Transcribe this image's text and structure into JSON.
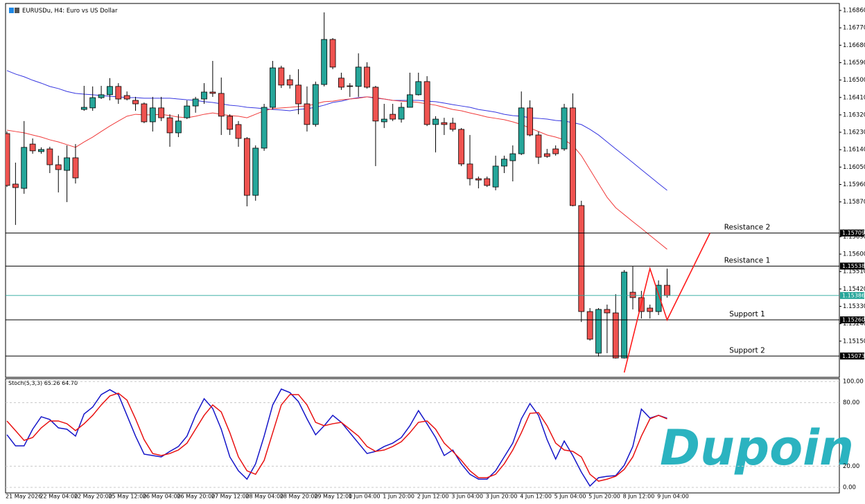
{
  "logo": "Dupoin",
  "chart_data": {
    "type": "candlestick",
    "title": "EURUSDu, H4:  Euro vs US Dollar",
    "categories": [
      "21 May 2026",
      null,
      null,
      null,
      "22 May 04:00",
      null,
      null,
      null,
      "22 May 20:00",
      null,
      null,
      null,
      "25 May 12:00",
      null,
      null,
      null,
      "26 May 04:00",
      null,
      null,
      null,
      "26 May 20:00",
      null,
      null,
      null,
      "27 May 12:00",
      null,
      null,
      null,
      "28 May 04:00",
      null,
      null,
      null,
      "28 May 20:00",
      null,
      null,
      null,
      "29 May 12:00",
      null,
      null,
      null,
      "1 Jun 04:00",
      null,
      null,
      null,
      "1 Jun 20:00",
      null,
      null,
      null,
      "2 Jun 12:00",
      null,
      null,
      null,
      "3 Jun 04:00",
      null,
      null,
      null,
      "3 Jun 20:00",
      null,
      null,
      null,
      "4 Jun 12:00",
      null,
      null,
      null,
      "5 Jun 04:00",
      null,
      null,
      null,
      "5 Jun 20:00",
      null,
      null,
      null,
      "8 Jun 12:00",
      null,
      null,
      null,
      "9 Jun 04:00",
      null
    ],
    "open": [
      1.16223,
      1.15962,
      1.1594,
      1.16169,
      1.1613,
      1.16144,
      1.16062,
      1.16033,
      1.16098,
      1.16348,
      1.16356,
      1.16409,
      1.16424,
      1.16467,
      1.1642,
      1.16395,
      1.16377,
      1.16284,
      1.16356,
      1.16305,
      1.16227,
      1.16305,
      1.16366,
      1.16402,
      1.16438,
      1.16431,
      1.16313,
      1.1627,
      1.16198,
      1.15904,
      1.16148,
      1.16359,
      1.16563,
      1.16502,
      1.16474,
      1.16377,
      1.1627,
      1.16477,
      1.1671,
      1.1651,
      1.1647,
      1.16467,
      1.16567,
      1.16463,
      1.16284,
      1.16323,
      1.16298,
      1.16359,
      1.16424,
      1.16492,
      1.1627,
      1.1628,
      1.16277,
      1.16245,
      1.16066,
      1.1599,
      1.1599,
      1.15947,
      1.16055,
      1.16083,
      1.16119,
      1.16356,
      1.16216,
      1.16119,
      1.16144,
      1.16144,
      1.16356,
      1.15851,
      1.15303,
      1.15088,
      1.15314,
      1.15296,
      1.15063,
      1.15403,
      1.15375,
      1.15321,
      1.15303,
      1.15439
    ],
    "high": [
      1.16234,
      1.16073,
      1.16288,
      1.16198,
      1.16152,
      1.16155,
      1.16109,
      1.16162,
      1.16169,
      1.1647,
      1.16467,
      1.1647,
      1.1651,
      1.16484,
      1.16441,
      1.16413,
      1.16384,
      1.16413,
      1.16413,
      1.16323,
      1.16323,
      1.16395,
      1.16413,
      1.16484,
      1.16599,
      1.16513,
      1.16323,
      1.16288,
      1.16205,
      1.16162,
      1.16377,
      1.16599,
      1.16574,
      1.16527,
      1.16556,
      1.16467,
      1.16492,
      1.1685,
      1.16717,
      1.16538,
      1.16484,
      1.16638,
      1.16592,
      1.1647,
      1.16377,
      1.16377,
      1.16384,
      1.16538,
      1.16538,
      1.1652,
      1.16313,
      1.16305,
      1.16305,
      1.16252,
      1.16216,
      1.16001,
      1.16001,
      1.16109,
      1.16109,
      1.16162,
      1.16441,
      1.16395,
      1.16234,
      1.16144,
      1.16162,
      1.16377,
      1.16431,
      1.15876,
      1.15321,
      1.15321,
      1.15339,
      1.15393,
      1.15518,
      1.15536,
      1.1541,
      1.15339,
      1.15464,
      1.15525
    ],
    "low": [
      1.15947,
      1.15751,
      1.15912,
      1.16119,
      1.16119,
      1.16019,
      1.15919,
      1.15869,
      1.15965,
      1.16341,
      1.16341,
      1.16402,
      1.16395,
      1.16377,
      1.16395,
      1.16341,
      1.16277,
      1.16234,
      1.16288,
      1.16155,
      1.16205,
      1.16298,
      1.16331,
      1.16377,
      1.16413,
      1.16216,
      1.16216,
      1.16155,
      1.15847,
      1.15876,
      1.16134,
      1.16348,
      1.16459,
      1.16456,
      1.16323,
      1.16234,
      1.16259,
      1.16467,
      1.16556,
      1.16449,
      1.16413,
      1.16413,
      1.16456,
      1.16055,
      1.16252,
      1.16288,
      1.1628,
      1.16359,
      1.1642,
      1.16262,
      1.16126,
      1.16216,
      1.16234,
      1.16055,
      1.15955,
      1.1594,
      1.15947,
      1.1593,
      1.16019,
      1.15976,
      1.16112,
      1.16209,
      1.16066,
      1.16098,
      1.16109,
      1.16134,
      1.15847,
      1.15249,
      1.15153,
      1.1507,
      1.15088,
      1.1506,
      1.1506,
      1.15314,
      1.15267,
      1.15267,
      1.15285,
      1.15375
    ],
    "close": [
      1.15955,
      1.15944,
      1.16152,
      1.16134,
      1.16141,
      1.16062,
      1.16037,
      1.16098,
      1.15994,
      1.16359,
      1.16409,
      1.16424,
      1.16467,
      1.16402,
      1.16402,
      1.16377,
      1.16284,
      1.16356,
      1.16305,
      1.16227,
      1.16288,
      1.16366,
      1.16402,
      1.16438,
      1.16431,
      1.16313,
      1.16245,
      1.16198,
      1.15904,
      1.16148,
      1.16359,
      1.16563,
      1.16474,
      1.16474,
      1.16377,
      1.1627,
      1.16477,
      1.1671,
      1.16567,
      1.16463,
      1.16467,
      1.16567,
      1.16463,
      1.16288,
      1.16298,
      1.16298,
      1.16359,
      1.16424,
      1.16492,
      1.1627,
      1.16298,
      1.1627,
      1.16245,
      1.16066,
      1.1599,
      1.15983,
      1.15955,
      1.16055,
      1.16091,
      1.16119,
      1.16356,
      1.16216,
      1.16101,
      1.16105,
      1.16119,
      1.16356,
      1.15851,
      1.15303,
      1.1516,
      1.15314,
      1.15296,
      1.15063,
      1.15507,
      1.15375,
      1.15303,
      1.15303,
      1.15439,
      1.15386
    ],
    "up_color": "#26a69a",
    "down_color": "#ef5350",
    "overlays": [
      {
        "color": "#3535e0",
        "values": [
          1.16549,
          1.16531,
          1.16517,
          1.16499,
          1.16484,
          1.16467,
          1.16456,
          1.16441,
          1.16431,
          1.16427,
          1.16424,
          1.1642,
          1.16416,
          1.16413,
          1.16409,
          1.16409,
          1.16406,
          1.16406,
          1.16406,
          1.16406,
          1.16402,
          1.16398,
          1.16395,
          1.16388,
          1.16384,
          1.16377,
          1.1637,
          1.16366,
          1.16359,
          1.16356,
          1.16352,
          1.16348,
          1.16345,
          1.16341,
          1.16348,
          1.16352,
          1.16359,
          1.1637,
          1.16384,
          1.16391,
          1.16402,
          1.16409,
          1.16413,
          1.16406,
          1.16402,
          1.16395,
          1.16395,
          1.16395,
          1.16395,
          1.16391,
          1.16388,
          1.16381,
          1.16373,
          1.16366,
          1.16359,
          1.16348,
          1.16341,
          1.16334,
          1.16323,
          1.16316,
          1.16313,
          1.16305,
          1.16302,
          1.16298,
          1.16291,
          1.16288,
          1.1628,
          1.1627,
          1.16245,
          1.16216,
          1.1618,
          1.16144,
          1.16109,
          1.16073,
          1.16037,
          1.16001,
          1.15965,
          1.1593
        ]
      },
      {
        "color": "#f03a3a",
        "values": [
          1.16241,
          1.16234,
          1.16227,
          1.16216,
          1.16205,
          1.16191,
          1.1618,
          1.16166,
          1.16152,
          1.1618,
          1.16205,
          1.16234,
          1.16262,
          1.16288,
          1.16313,
          1.16323,
          1.1632,
          1.1632,
          1.16323,
          1.16316,
          1.16309,
          1.16305,
          1.16313,
          1.16323,
          1.1633,
          1.16323,
          1.16316,
          1.16313,
          1.16305,
          1.16323,
          1.16341,
          1.16352,
          1.16356,
          1.16359,
          1.16363,
          1.16366,
          1.16377,
          1.16388,
          1.16391,
          1.16398,
          1.16402,
          1.16406,
          1.16413,
          1.16409,
          1.16402,
          1.16395,
          1.16391,
          1.16388,
          1.16384,
          1.16377,
          1.1637,
          1.16359,
          1.16348,
          1.16341,
          1.1633,
          1.1632,
          1.16309,
          1.16302,
          1.16295,
          1.16284,
          1.1627,
          1.16252,
          1.16234,
          1.16216,
          1.16205,
          1.16191,
          1.16162,
          1.16109,
          1.16037,
          1.15965,
          1.15894,
          1.1584,
          1.15804,
          1.15768,
          1.15733,
          1.15697,
          1.15661,
          1.15625
        ]
      }
    ],
    "ylim": [
      1.14963,
      1.16896
    ],
    "yticks": [
      {
        "value": 1.1686,
        "label": "1.16860"
      },
      {
        "value": 1.1677,
        "label": "1.16770"
      },
      {
        "value": 1.1668,
        "label": "1.16680"
      },
      {
        "value": 1.1659,
        "label": "1.16590"
      },
      {
        "value": 1.165,
        "label": "1.16500"
      },
      {
        "value": 1.1641,
        "label": "1.16410"
      },
      {
        "value": 1.1632,
        "label": "1.16320"
      },
      {
        "value": 1.1623,
        "label": "1.16230"
      },
      {
        "value": 1.1614,
        "label": "1.16140"
      },
      {
        "value": 1.1605,
        "label": "1.16050"
      },
      {
        "value": 1.1596,
        "label": "1.15960"
      },
      {
        "value": 1.1587,
        "label": "1.15870"
      },
      {
        "value": 1.1569,
        "label": "1.15690"
      },
      {
        "value": 1.156,
        "label": "1.15600"
      },
      {
        "value": 1.1551,
        "label": "1.15510"
      },
      {
        "value": 1.1542,
        "label": "1.15420"
      },
      {
        "value": 1.1533,
        "label": "1.15330"
      },
      {
        "value": 1.1524,
        "label": "1.15240"
      },
      {
        "value": 1.1515,
        "label": "1.15150"
      }
    ],
    "levels": [
      {
        "name": "Resistance 2",
        "price": 1.15709
      },
      {
        "name": "Resistance 1",
        "price": 1.15538
      },
      {
        "name": "Support 1",
        "price": {
          "value": 1.1526,
          "label": "1.15260"
        }
      },
      {
        "name": "Support 2",
        "price": 1.15073
      }
    ],
    "current_price": 1.15386,
    "current_color": "#26a69a",
    "drawing": {
      "color": "#ff1a1a",
      "x": [
        72,
        75,
        77,
        82
      ],
      "y": [
        1.14988,
        1.15525,
        1.1526,
        1.15709
      ]
    },
    "indicator": {
      "title": "Stoch(5,3,3) 65.26 64.70",
      "ylim": [
        -5.2,
        102.6
      ],
      "yticks": [
        {
          "value": 100,
          "label": "100.00"
        },
        {
          "value": 80,
          "label": "80.00"
        },
        {
          "value": 20,
          "label": "20.00"
        },
        {
          "value": 0,
          "label": "0.00"
        }
      ],
      "series": [
        {
          "color": "#1414c8",
          "values": [
            49.7,
            39.2,
            39.2,
            54.9,
            66.7,
            64.1,
            56.2,
            54.9,
            48.4,
            69.3,
            75.8,
            87.6,
            92.2,
            87.6,
            68.0,
            48.4,
            31.4,
            30.1,
            28.8,
            34.0,
            38.6,
            48.4,
            68.0,
            83.7,
            74.5,
            54.9,
            28.8,
            15.7,
            7.8,
            22.2,
            48.4,
            77.8,
            92.8,
            89.5,
            81.0,
            64.7,
            49.7,
            58.2,
            68.0,
            61.4,
            51.6,
            41.8,
            32.0,
            34.0,
            38.6,
            41.8,
            47.1,
            58.2,
            72.5,
            60.1,
            47.1,
            30.1,
            35.3,
            22.2,
            12.4,
            7.8,
            7.8,
            15.7,
            28.8,
            41.8,
            64.7,
            79.1,
            68.0,
            45.1,
            26.8,
            43.8,
            30.1,
            14.4,
            1.3,
            9.2,
            10.5,
            11.1,
            20.9,
            38.6,
            73.9,
            65.4,
            68.0,
            65.26
          ]
        },
        {
          "color": "#e81010",
          "values": [
            62.7,
            53.6,
            44.4,
            47.1,
            56.2,
            62.7,
            62.7,
            60.1,
            53.6,
            60.1,
            68.0,
            77.8,
            86.3,
            88.9,
            82.4,
            64.7,
            45.1,
            32.0,
            30.1,
            32.0,
            35.3,
            41.8,
            54.9,
            68.0,
            77.8,
            71.2,
            51.6,
            28.8,
            15.7,
            12.4,
            25.5,
            51.6,
            77.8,
            87.6,
            87.6,
            77.8,
            61.4,
            58.2,
            60.1,
            61.4,
            54.9,
            48.4,
            38.6,
            34.0,
            35.3,
            38.6,
            43.1,
            51.6,
            61.4,
            62.7,
            54.9,
            41.8,
            34.0,
            25.5,
            15.7,
            9.2,
            9.2,
            12.4,
            22.2,
            35.3,
            51.6,
            69.9,
            70.6,
            58.2,
            41.8,
            35.3,
            34.0,
            28.8,
            12.4,
            5.9,
            7.8,
            10.5,
            17.0,
            28.8,
            48.4,
            64.7,
            68.0,
            64.7
          ]
        }
      ]
    }
  }
}
